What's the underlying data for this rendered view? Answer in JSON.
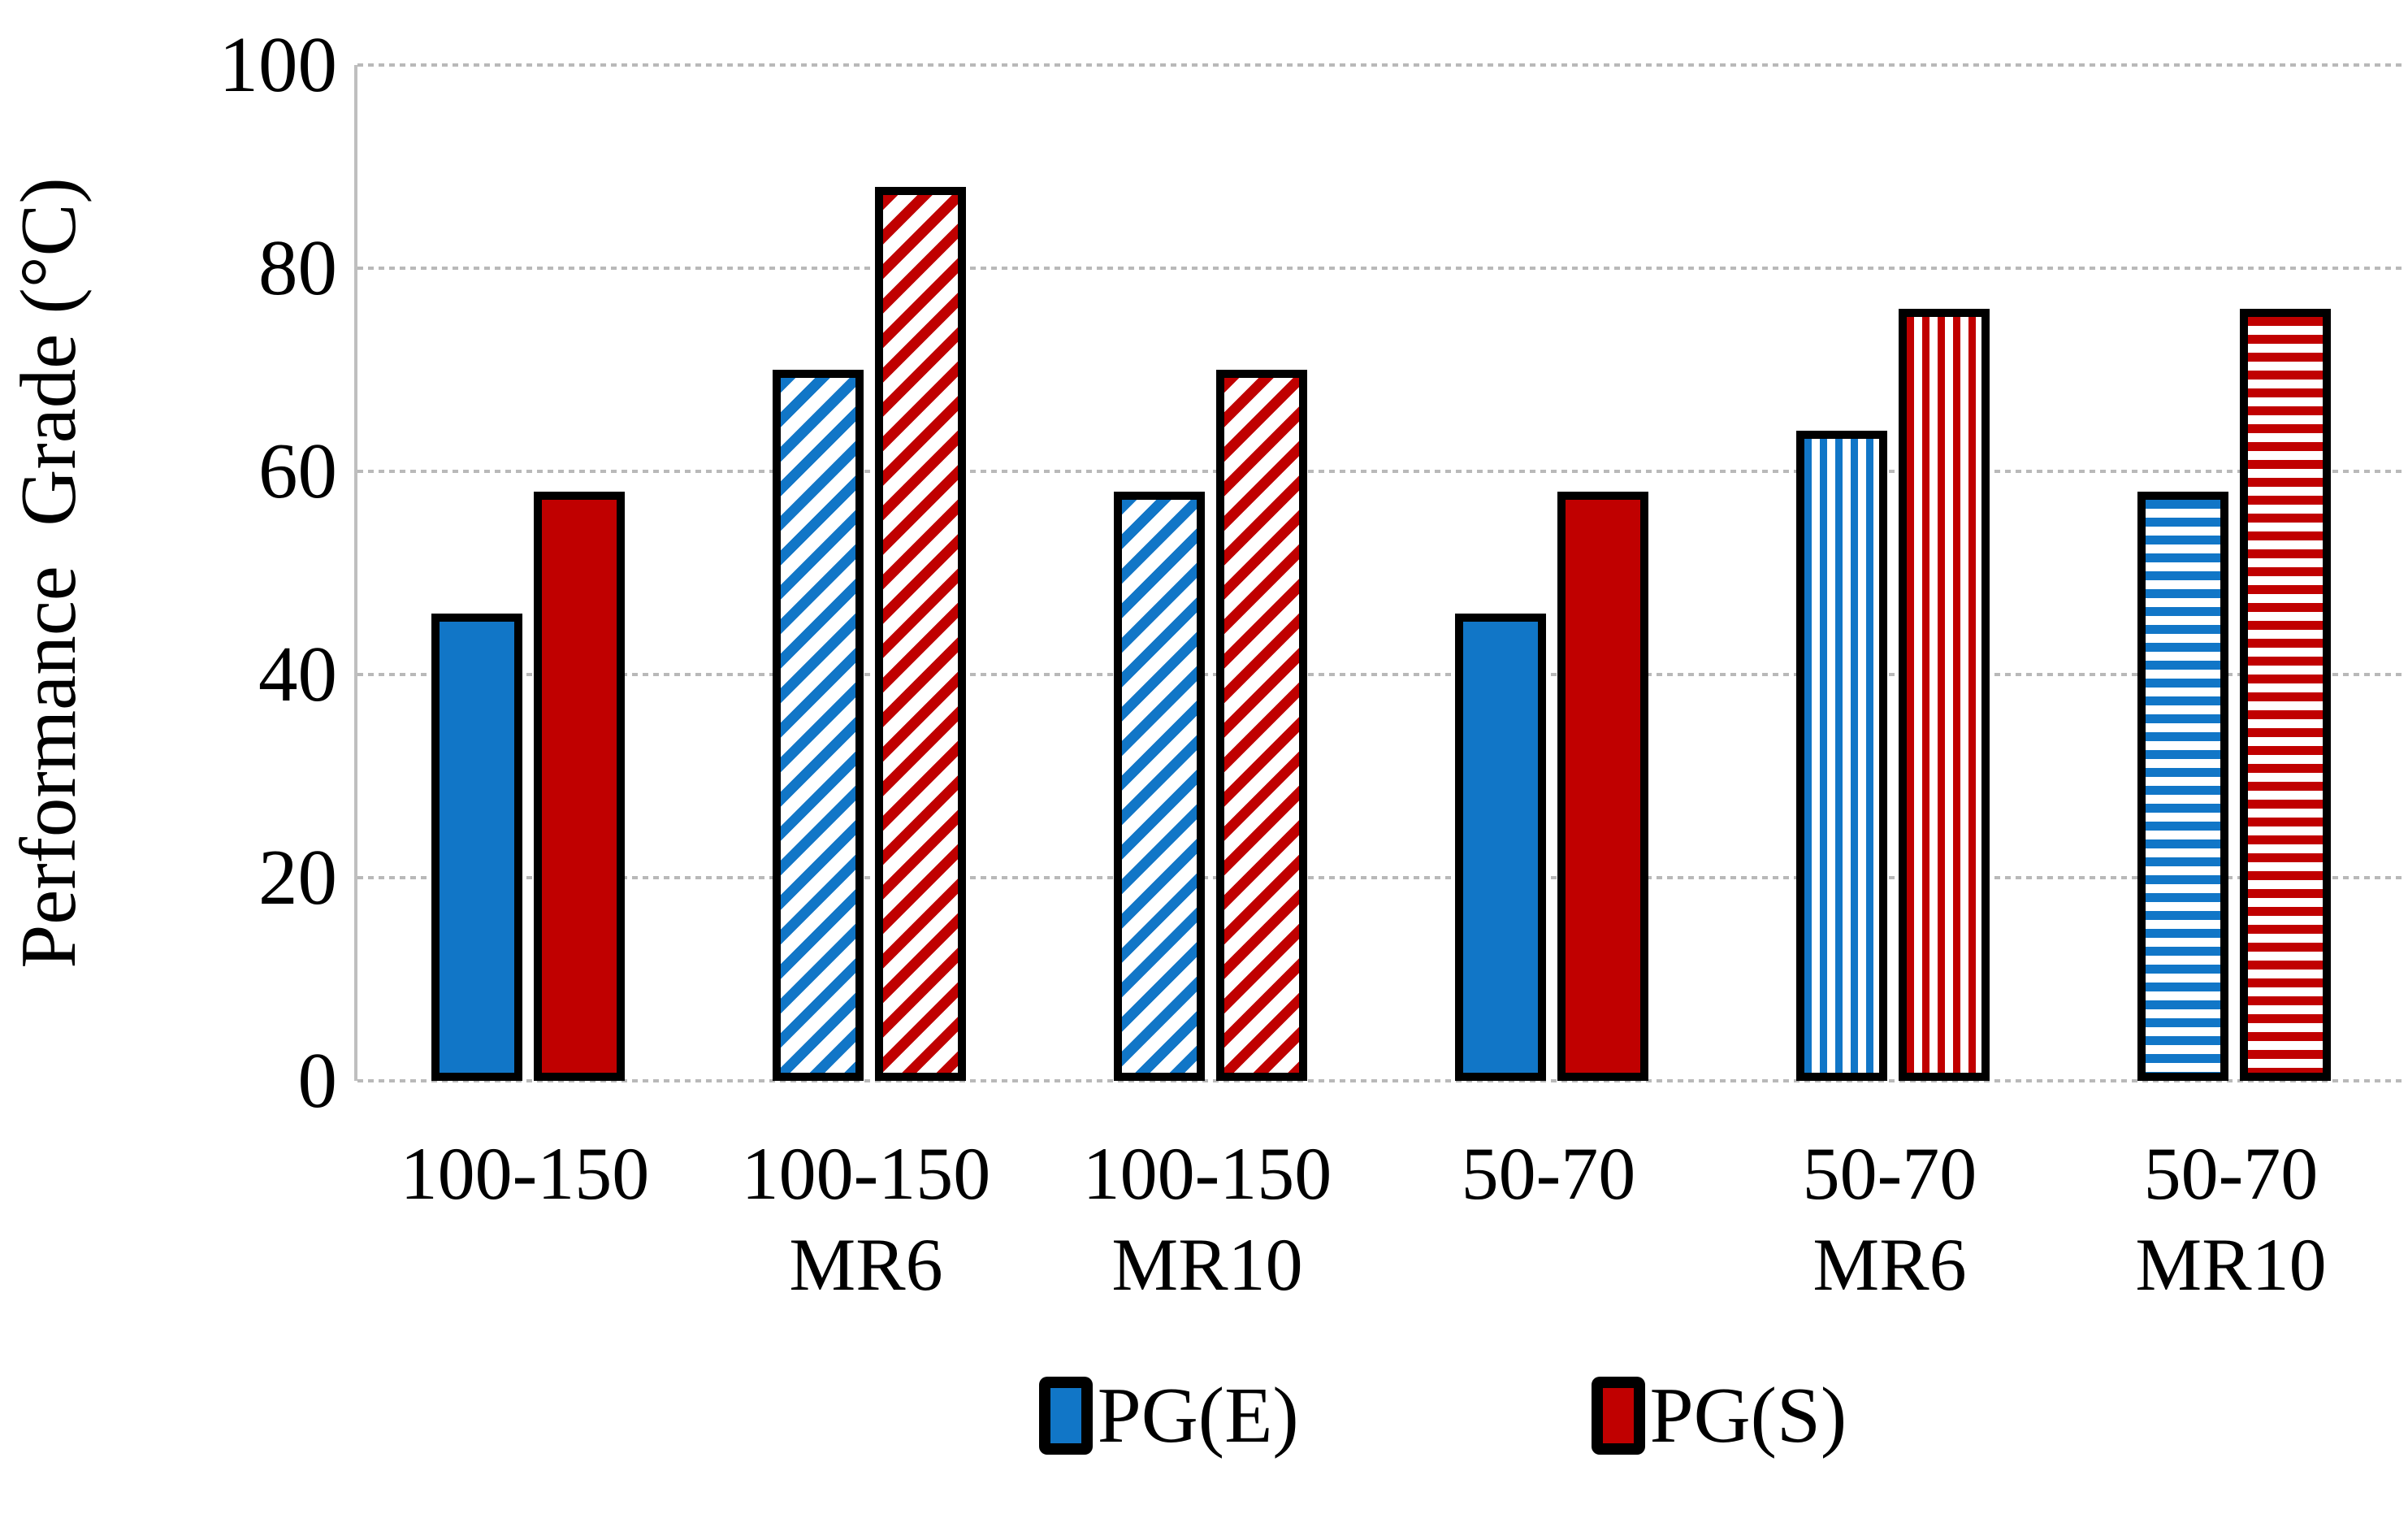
{
  "chart_data": {
    "type": "bar",
    "title": "",
    "xlabel": "",
    "ylabel": "Performance  Grade (°C)",
    "ylim": [
      0,
      100
    ],
    "yticks": [
      0,
      20,
      40,
      60,
      80,
      100
    ],
    "grid": "horizontal-dotted",
    "legend_position": "bottom-center",
    "categories": [
      "100-150",
      "100-150 MR6",
      "100-150 MR10",
      "50-70",
      "50-70 MR6",
      "50-70 MR10"
    ],
    "category_lines": [
      [
        "100-150"
      ],
      [
        "100-150",
        "MR6"
      ],
      [
        "100-150",
        "MR10"
      ],
      [
        "50-70"
      ],
      [
        "50-70",
        "MR6"
      ],
      [
        "50-70",
        "MR10"
      ]
    ],
    "bar_patterns": [
      "solid",
      "diagonal-up",
      "diagonal-up",
      "solid",
      "vertical",
      "horizontal"
    ],
    "series": [
      {
        "name": "PG(E)",
        "color": "#1176C7",
        "values": [
          46,
          70,
          58,
          46,
          64,
          58
        ]
      },
      {
        "name": "PG(S)",
        "color": "#C00000",
        "values": [
          58,
          88,
          70,
          58,
          76,
          76
        ]
      }
    ]
  },
  "colors": {
    "bar_border": "#000000",
    "gridline": "#b9b9b9",
    "axis_line": "#bfbfbf",
    "background": "#ffffff",
    "pattern_background": "#ffffff"
  }
}
